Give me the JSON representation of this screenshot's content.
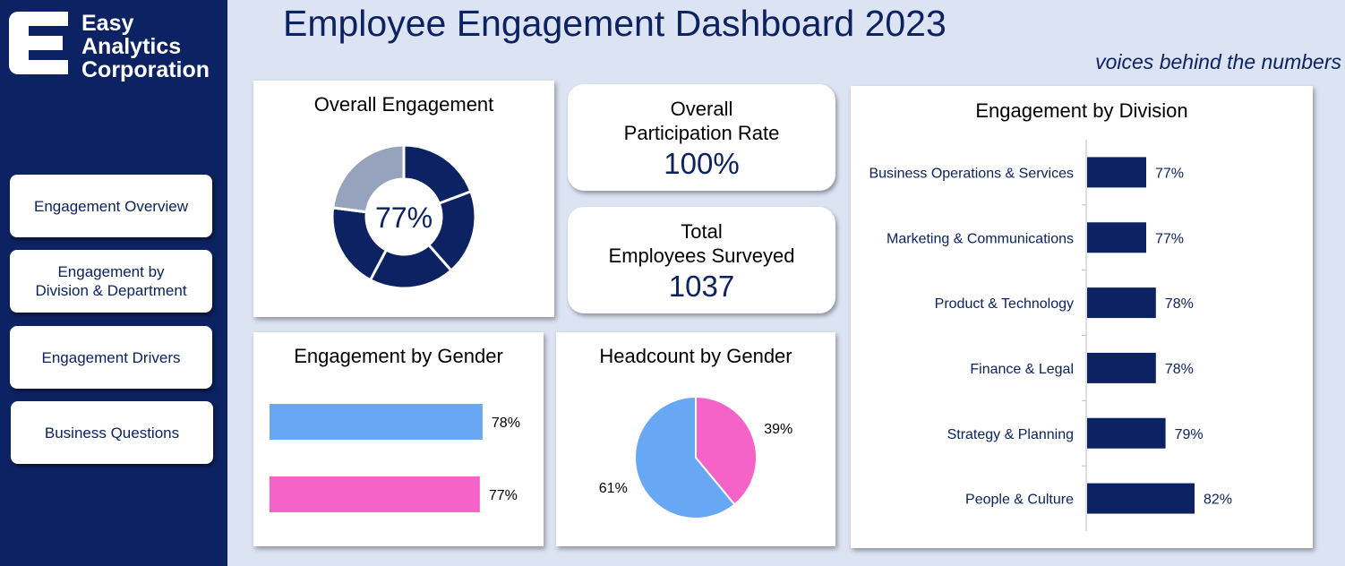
{
  "app": {
    "title": "Employee Engagement Dashboard 2023",
    "subtitle": "voices behind the numbers",
    "logo_lines": [
      "Easy",
      "Analytics",
      "Corporation"
    ]
  },
  "nav": {
    "items": [
      {
        "lines": [
          "Engagement Overview"
        ]
      },
      {
        "lines": [
          "Engagement by",
          "Division & Department"
        ]
      },
      {
        "lines": [
          "Engagement Drivers"
        ]
      },
      {
        "lines": [
          "Business Questions"
        ]
      }
    ]
  },
  "colors": {
    "navy": "#0d2262",
    "gray": "#97a3bd",
    "male_blue": "#67a7f4",
    "female_pink": "#f563c8",
    "background": "#dce3f2"
  },
  "overall_engagement": {
    "title": "Overall Engagement",
    "value_label": "77%",
    "icons": [
      "donut-chart-icon"
    ]
  },
  "participation": {
    "label_lines": [
      "Overall",
      "Participation Rate"
    ],
    "value": "100%"
  },
  "surveyed": {
    "label_lines": [
      "Total",
      "Employees Surveyed"
    ],
    "value": "1037"
  },
  "gender_engagement": {
    "title": "Engagement by Gender"
  },
  "headcount_gender": {
    "title": "Headcount by Gender"
  },
  "division_engagement": {
    "title": "Engagement by Division"
  },
  "chart_data": [
    {
      "type": "pie",
      "title": "Overall Engagement",
      "center_label": "77%",
      "slices": [
        {
          "value": 77,
          "color": "#0d2262"
        },
        {
          "value": 23,
          "color": "#97a3bd"
        }
      ]
    },
    {
      "type": "bar",
      "title": "Engagement by Gender",
      "orientation": "horizontal",
      "values": [
        78,
        77
      ],
      "labels": [
        "78%",
        "77%"
      ],
      "colors": [
        "#67a7f4",
        "#f563c8"
      ]
    },
    {
      "type": "pie",
      "title": "Headcount by Gender",
      "values": [
        39,
        61
      ],
      "labels": [
        "39%",
        "61%"
      ],
      "colors": [
        "#f563c8",
        "#67a7f4"
      ]
    },
    {
      "type": "bar",
      "title": "Engagement by Division",
      "orientation": "horizontal",
      "categories": [
        "Business Operations & Services",
        "Marketing & Communications",
        "Product & Technology",
        "Finance & Legal",
        "Strategy & Planning",
        "People & Culture"
      ],
      "values": [
        77,
        77,
        78,
        78,
        79,
        82
      ],
      "labels": [
        "77%",
        "77%",
        "78%",
        "78%",
        "79%",
        "82%"
      ],
      "color": "#0d2262"
    }
  ]
}
